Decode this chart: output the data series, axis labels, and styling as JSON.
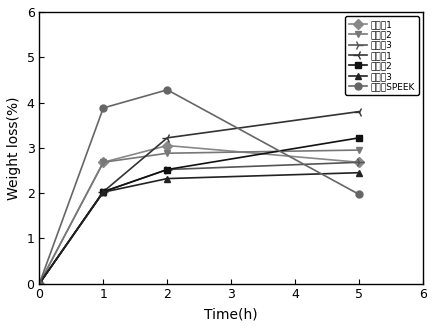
{
  "series": [
    {
      "label": "实施例1",
      "x": [
        0,
        1,
        2,
        5
      ],
      "y": [
        0,
        2.68,
        3.05,
        2.68
      ],
      "color": "#888888",
      "marker": "D",
      "markersize": 5,
      "linewidth": 1.2
    },
    {
      "label": "实施例2",
      "x": [
        0,
        1,
        2,
        5
      ],
      "y": [
        0,
        2.68,
        2.88,
        2.95
      ],
      "color": "#777777",
      "marker": "v",
      "markersize": 5,
      "linewidth": 1.2
    },
    {
      "label": "实施例3",
      "x": [
        0,
        1,
        2,
        5
      ],
      "y": [
        0,
        2.03,
        2.52,
        2.68
      ],
      "color": "#555555",
      "marker": "4",
      "markersize": 7,
      "linewidth": 1.2
    },
    {
      "label": "对比例1",
      "x": [
        0,
        1,
        2,
        5
      ],
      "y": [
        0,
        2.03,
        3.22,
        3.8
      ],
      "color": "#333333",
      "marker": "3",
      "markersize": 7,
      "linewidth": 1.2
    },
    {
      "label": "对比例2",
      "x": [
        0,
        1,
        2,
        5
      ],
      "y": [
        0,
        2.03,
        2.52,
        3.22
      ],
      "color": "#111111",
      "marker": "s",
      "markersize": 5,
      "linewidth": 1.2
    },
    {
      "label": "对比例3",
      "x": [
        0,
        1,
        2,
        5
      ],
      "y": [
        0,
        2.02,
        2.32,
        2.45
      ],
      "color": "#222222",
      "marker": "^",
      "markersize": 5,
      "linewidth": 1.2
    },
    {
      "label": "未捉杂SPEEK",
      "x": [
        0,
        1,
        2,
        5
      ],
      "y": [
        0,
        3.88,
        4.28,
        1.97
      ],
      "color": "#666666",
      "marker": "o",
      "markersize": 5,
      "linewidth": 1.2
    }
  ],
  "xlabel": "Time(h)",
  "ylabel": "Weight loss(%)",
  "xlim": [
    0,
    6
  ],
  "ylim": [
    0,
    6
  ],
  "xticks": [
    0,
    1,
    2,
    3,
    4,
    5,
    6
  ],
  "yticks": [
    0,
    1,
    2,
    3,
    4,
    5,
    6
  ],
  "legend_loc": "upper right",
  "legend_fontsize": 6.5,
  "axis_fontsize": 10,
  "tick_fontsize": 9
}
